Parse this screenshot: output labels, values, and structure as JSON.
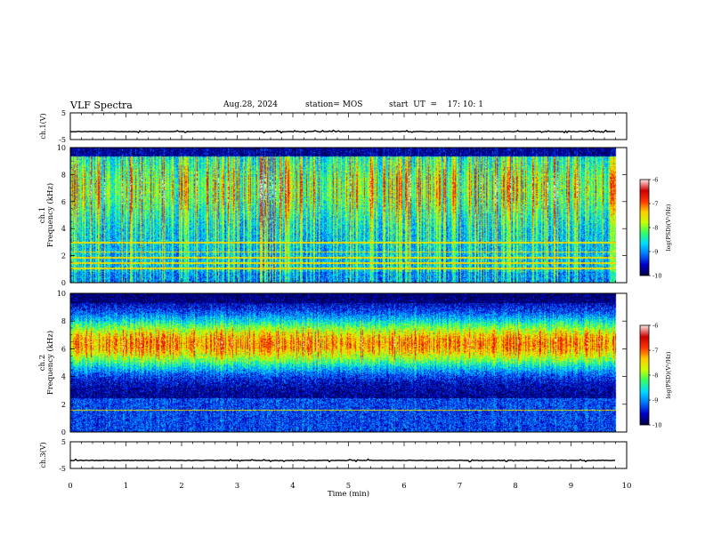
{
  "header": {
    "title": "VLF Spectra",
    "date": "Aug.28, 2024",
    "station": "station= MOS",
    "start": "start  UT  =    17: 10: 1"
  },
  "colors": {
    "bg": "#ffffff",
    "frame": "#000000",
    "cmap": [
      "#000044",
      "#0000cc",
      "#0077ff",
      "#00ddff",
      "#33ff66",
      "#ccff00",
      "#ffcc00",
      "#ff3300",
      "#cc0000",
      "#ffdddd"
    ]
  },
  "chart_data": [
    {
      "id": "ch1_waveform",
      "type": "line",
      "ylabel": "ch.1(V)",
      "ylim": [
        -5,
        5
      ],
      "yticks": [
        "5",
        "-5"
      ],
      "xlim": [
        0,
        10
      ],
      "baseline": -2,
      "grid": false
    },
    {
      "id": "ch1_spectrogram",
      "type": "heatmap",
      "ylabel_line1": "ch.1",
      "ylabel_line2": "Frequency (kHz)",
      "ylim": [
        0,
        10
      ],
      "yticks": [
        "0",
        "2",
        "4",
        "6",
        "8",
        "10"
      ],
      "xlim": [
        0,
        10
      ],
      "data_end_min": 9.8,
      "colorbar": {
        "label": "log(PSD)(V²/Hz)",
        "range": [
          -10,
          -6
        ],
        "ticks": [
          "-6",
          "-7",
          "-8",
          "-9",
          "-10"
        ]
      },
      "bands_khz": [
        1.1,
        1.5,
        1.9,
        2.3,
        3.0
      ],
      "profile": "broadband emissions 1-10 kHz, strong -7 to -6 streaks near 5-9 kHz"
    },
    {
      "id": "ch2_spectrogram",
      "type": "heatmap",
      "ylabel_line1": "ch.2",
      "ylabel_line2": "Frequency (kHz)",
      "ylim": [
        0,
        10
      ],
      "yticks": [
        "0",
        "2",
        "4",
        "6",
        "8",
        "10"
      ],
      "xlim": [
        0,
        10
      ],
      "data_end_min": 9.8,
      "colorbar": {
        "label": "log(PSD)(V²/Hz)",
        "range": [
          -10,
          -6
        ],
        "ticks": [
          "-6",
          "-7",
          "-8",
          "-9",
          "-10"
        ]
      },
      "bands_khz": [
        1.6
      ],
      "profile": "emission band peaking near 6-7 kHz, weak below 3 kHz and above 9 kHz"
    },
    {
      "id": "ch3_waveform",
      "type": "line",
      "ylabel": "ch.3(V)",
      "ylim": [
        -5,
        5
      ],
      "yticks": [
        "5",
        "-5"
      ],
      "xlim": [
        0,
        10
      ],
      "baseline": -2,
      "grid": false
    }
  ],
  "xaxis": {
    "label": "Time  (min)",
    "range": [
      0,
      10
    ],
    "ticks": [
      "0",
      "1",
      "2",
      "3",
      "4",
      "5",
      "6",
      "7",
      "8",
      "9",
      "10"
    ]
  }
}
